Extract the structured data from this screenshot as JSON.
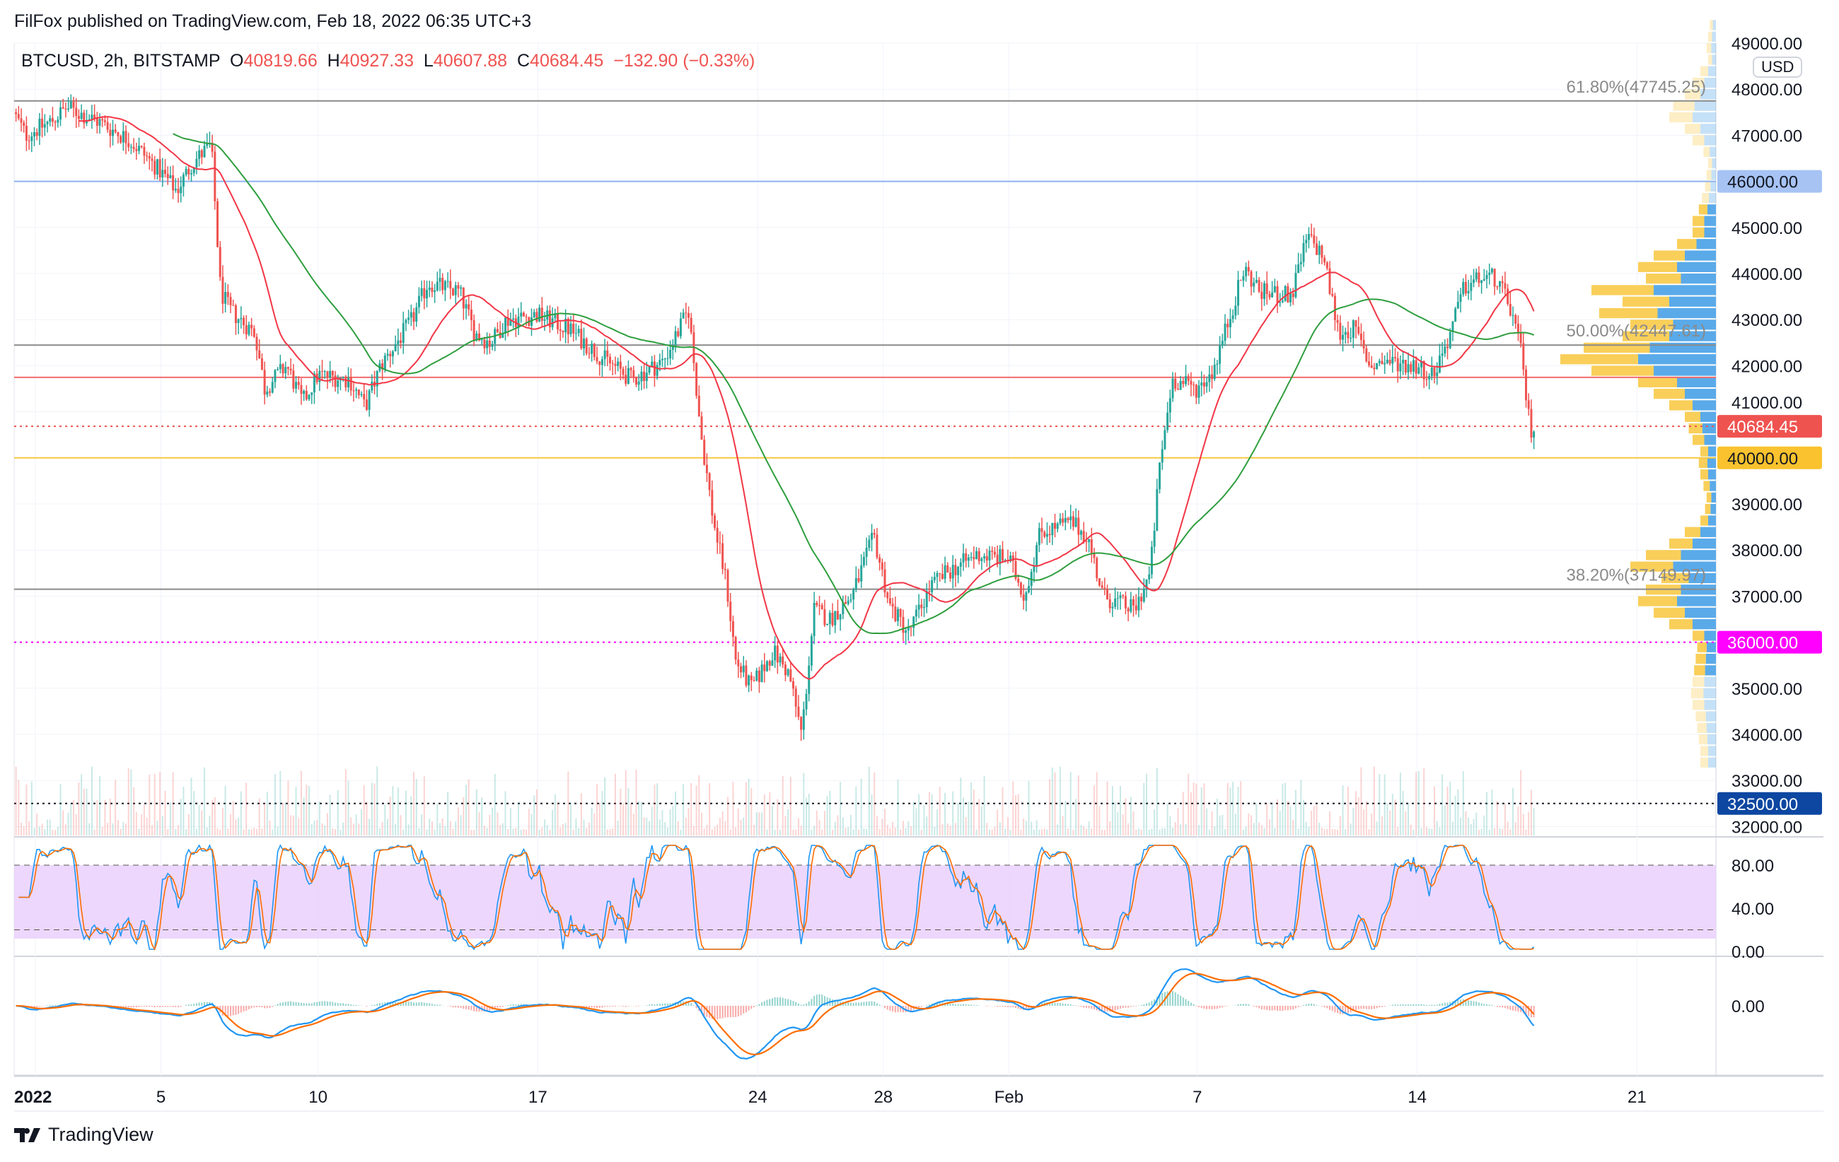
{
  "published": "FilFox published on TradingView.com, Feb 18, 2022 06:35 UTC+3",
  "legend": {
    "symbol": "BTCUSD, 2h, BITSTAMP",
    "o_label": "O",
    "o": "40819.66",
    "h_label": "H",
    "h": "40927.33",
    "l_label": "L",
    "l": "40607.88",
    "c_label": "C",
    "c": "40684.45",
    "change": "−132.90 (−0.33%)"
  },
  "currency": "USD",
  "logo": "TradingView",
  "colors": {
    "up": "#26a69a",
    "down": "#ef5350",
    "ma_fast": "#f23645",
    "ma_slow": "#2e9e3e",
    "vp_up": "#5aaae9",
    "vp_down": "#f9cf5a",
    "rsi_bg": "#e9cdfc",
    "k": "#2196f3",
    "d": "#ff6d00"
  },
  "chart_data": {
    "type": "candlestick",
    "interval": "2h",
    "x_unit": "days since 2022-01-01",
    "ylim": [
      32000,
      49000
    ],
    "y_ticks": [
      "49000.00",
      "48000.00",
      "47000.00",
      "46000.00",
      "45000.00",
      "44000.00",
      "43000.00",
      "42000.00",
      "41000.00",
      "40000.00",
      "39000.00",
      "38000.00",
      "37000.00",
      "36000.00",
      "35000.00",
      "34000.00",
      "33000.00",
      "32000.00"
    ],
    "x_ticks": [
      {
        "day": 0,
        "label": "2022"
      },
      {
        "day": 4,
        "label": "5"
      },
      {
        "day": 9,
        "label": "10"
      },
      {
        "day": 16,
        "label": "17"
      },
      {
        "day": 23,
        "label": "24"
      },
      {
        "day": 27,
        "label": "28"
      },
      {
        "day": 31,
        "label": "Feb"
      },
      {
        "day": 37,
        "label": "7"
      },
      {
        "day": 44,
        "label": "14"
      },
      {
        "day": 51,
        "label": "21"
      }
    ],
    "price_path": [
      [
        -0.7,
        47500
      ],
      [
        -0.3,
        47000
      ],
      [
        0.5,
        47300
      ],
      [
        1,
        47600
      ],
      [
        2,
        47300
      ],
      [
        3,
        46900
      ],
      [
        4,
        46200
      ],
      [
        4.5,
        45800
      ],
      [
        5,
        46400
      ],
      [
        5.6,
        46800
      ],
      [
        5.9,
        43600
      ],
      [
        6.2,
        43200
      ],
      [
        7,
        42700
      ],
      [
        7.3,
        41500
      ],
      [
        8,
        42000
      ],
      [
        8.5,
        41200
      ],
      [
        9,
        41800
      ],
      [
        10,
        41700
      ],
      [
        10.5,
        41100
      ],
      [
        11,
        42000
      ],
      [
        12,
        43000
      ],
      [
        12.5,
        43800
      ],
      [
        13.5,
        43600
      ],
      [
        14,
        42700
      ],
      [
        14.5,
        42500
      ],
      [
        15,
        43000
      ],
      [
        16,
        43100
      ],
      [
        17,
        42800
      ],
      [
        18,
        42200
      ],
      [
        19,
        41700
      ],
      [
        20,
        42100
      ],
      [
        20.8,
        43200
      ],
      [
        21.2,
        40500
      ],
      [
        21.6,
        38600
      ],
      [
        22,
        37300
      ],
      [
        22.3,
        35600
      ],
      [
        22.8,
        35000
      ],
      [
        23.5,
        35800
      ],
      [
        24,
        35300
      ],
      [
        24.4,
        34000
      ],
      [
        24.8,
        36700
      ],
      [
        25.3,
        36500
      ],
      [
        26,
        37000
      ],
      [
        26.7,
        38300
      ],
      [
        27.2,
        36800
      ],
      [
        27.8,
        36200
      ],
      [
        28.5,
        37200
      ],
      [
        29,
        37500
      ],
      [
        30,
        37900
      ],
      [
        31,
        37800
      ],
      [
        31.5,
        37000
      ],
      [
        32,
        38400
      ],
      [
        33,
        38600
      ],
      [
        33.5,
        38300
      ],
      [
        34,
        37000
      ],
      [
        35,
        36700
      ],
      [
        35.5,
        37500
      ],
      [
        35.8,
        39800
      ],
      [
        36.2,
        41700
      ],
      [
        37,
        41500
      ],
      [
        37.5,
        41900
      ],
      [
        38,
        43000
      ],
      [
        38.5,
        44100
      ],
      [
        39,
        43600
      ],
      [
        40,
        43500
      ],
      [
        40.5,
        44800
      ],
      [
        41,
        44400
      ],
      [
        41.5,
        42700
      ],
      [
        42,
        42800
      ],
      [
        42.5,
        42000
      ],
      [
        43,
        42100
      ],
      [
        44,
        42000
      ],
      [
        44.5,
        41800
      ],
      [
        45,
        42600
      ],
      [
        45.5,
        43700
      ],
      [
        46,
        43900
      ],
      [
        46.5,
        43900
      ],
      [
        47,
        43200
      ],
      [
        47.3,
        42300
      ],
      [
        47.6,
        40600
      ],
      [
        47.75,
        40684.45
      ]
    ],
    "moving_averages": [
      {
        "name": "MA fast",
        "period": 24
      },
      {
        "name": "MA slow",
        "period": 60
      }
    ],
    "levels": [
      {
        "price": 47745.25,
        "label": "61.80%(47745.25)",
        "kind": "fib",
        "color": "#8a8a8a"
      },
      {
        "price": 46000,
        "label": "46000.00",
        "kind": "line",
        "color": "#8fb2ef",
        "tag_bg": "#a6c3f4",
        "tag_fg": "#131722"
      },
      {
        "price": 42447.61,
        "label": "50.00%(42447.61)",
        "kind": "fib",
        "color": "#8a8a8a"
      },
      {
        "price": 41748,
        "kind": "plain",
        "color": "#f26b6b"
      },
      {
        "price": 40684.45,
        "label": "40684.45",
        "kind": "dotted",
        "color": "#ef5350",
        "tag_bg": "#ef5350",
        "tag_fg": "#ffffff"
      },
      {
        "price": 40000,
        "label": "40000.00",
        "kind": "line",
        "color": "#f7c843",
        "tag_bg": "#f9c22e",
        "tag_fg": "#131722"
      },
      {
        "price": 37149.97,
        "label": "38.20%(37149.97)",
        "kind": "fib",
        "color": "#8a8a8a"
      },
      {
        "price": 36000,
        "label": "36000.00",
        "kind": "dotted",
        "color": "#ff00ff",
        "tag_bg": "#ff00ff",
        "tag_fg": "#ffffff"
      },
      {
        "price": 32500,
        "label": "32500.00",
        "kind": "dotted",
        "color": "#131722",
        "tag_bg": "#0d47a1",
        "tag_fg": "#ffffff"
      }
    ],
    "volume_profile": {
      "start": 33250,
      "step": 250,
      "total": [
        20,
        20,
        22,
        24,
        26,
        30,
        32,
        30,
        28,
        26,
        24,
        30,
        60,
        80,
        100,
        90,
        70,
        110,
        90,
        60,
        40,
        20,
        14,
        12,
        16,
        20,
        22,
        20,
        30,
        35,
        40,
        60,
        80,
        100,
        160,
        200,
        170,
        120,
        110,
        150,
        120,
        160,
        90,
        100,
        80,
        50,
        30,
        30,
        22,
        18,
        14,
        12,
        10,
        16,
        30,
        40,
        60,
        55,
        40,
        30,
        20,
        10,
        12,
        10,
        8
      ],
      "up_share": 0.5
    },
    "rsi_levels": {
      "upper": "80.00",
      "mid": "40.00",
      "lower": "0.00"
    },
    "macd_zero": "0.00"
  }
}
